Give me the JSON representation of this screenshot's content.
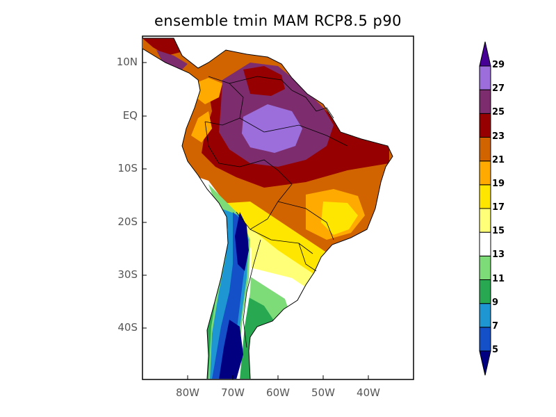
{
  "title": "ensemble tmin MAM RCP8.5 p90",
  "lat_labels": [
    {
      "label": "10N",
      "lat": 10
    },
    {
      "label": "EQ",
      "lat": 0
    },
    {
      "label": "10S",
      "lat": -10
    },
    {
      "label": "20S",
      "lat": -20
    },
    {
      "label": "30S",
      "lat": -30
    },
    {
      "label": "40S",
      "lat": -40
    }
  ],
  "lon_labels": [
    {
      "label": "80W",
      "lon": -80
    },
    {
      "label": "70W",
      "lon": -70
    },
    {
      "label": "60W",
      "lon": -60
    },
    {
      "label": "50W",
      "lon": -50
    },
    {
      "label": "40W",
      "lon": -40
    }
  ],
  "colorbar": {
    "levels": [
      "5",
      "7",
      "9",
      "11",
      "13",
      "15",
      "17",
      "19",
      "21",
      "23",
      "25",
      "27",
      "29"
    ],
    "colors": [
      "#000080",
      "#1450c8",
      "#1e96d2",
      "#28a850",
      "#7ddc78",
      "#ffffff",
      "#ffff78",
      "#ffe600",
      "#ffaa00",
      "#d26400",
      "#960000",
      "#7d2d6e",
      "#9b6edc",
      "#460096"
    ]
  }
}
